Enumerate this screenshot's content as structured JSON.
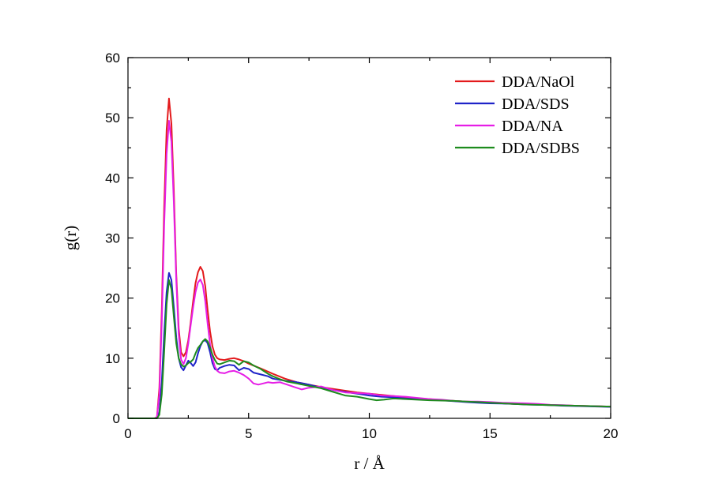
{
  "chart_data": {
    "type": "line",
    "title": "",
    "xlabel": "r / Å",
    "ylabel": "g(r)",
    "xlim": [
      0,
      20
    ],
    "ylim": [
      0,
      60
    ],
    "xticks": [
      0,
      5,
      10,
      15,
      20
    ],
    "yticks": [
      0,
      10,
      20,
      30,
      40,
      50,
      60
    ],
    "xtick_labels": [
      "0",
      "5",
      "10",
      "15",
      "20"
    ],
    "ytick_labels": [
      "0",
      "10",
      "20",
      "30",
      "40",
      "50",
      "60"
    ],
    "grid": false,
    "legend_position": "top-right",
    "series": [
      {
        "name": "DDA/NaOl",
        "color": "#e31a1c",
        "points": [
          [
            0,
            0
          ],
          [
            1.1,
            0
          ],
          [
            1.2,
            0.2
          ],
          [
            1.3,
            5
          ],
          [
            1.4,
            18
          ],
          [
            1.5,
            35
          ],
          [
            1.6,
            48
          ],
          [
            1.7,
            53.2
          ],
          [
            1.8,
            49
          ],
          [
            1.9,
            38
          ],
          [
            2.0,
            24
          ],
          [
            2.1,
            15
          ],
          [
            2.2,
            11
          ],
          [
            2.3,
            10.3
          ],
          [
            2.4,
            11
          ],
          [
            2.5,
            13
          ],
          [
            2.6,
            16
          ],
          [
            2.7,
            19.5
          ],
          [
            2.8,
            22.5
          ],
          [
            2.9,
            24.3
          ],
          [
            3.0,
            25.2
          ],
          [
            3.1,
            24.5
          ],
          [
            3.2,
            22
          ],
          [
            3.3,
            18
          ],
          [
            3.4,
            14.5
          ],
          [
            3.5,
            12
          ],
          [
            3.6,
            10.6
          ],
          [
            3.7,
            10
          ],
          [
            3.8,
            9.8
          ],
          [
            4.0,
            9.7
          ],
          [
            4.2,
            9.9
          ],
          [
            4.4,
            10
          ],
          [
            4.6,
            9.8
          ],
          [
            4.8,
            9.5
          ],
          [
            5.0,
            9.1
          ],
          [
            5.5,
            8.3
          ],
          [
            6.0,
            7.4
          ],
          [
            6.5,
            6.6
          ],
          [
            7.0,
            6.0
          ],
          [
            7.5,
            5.6
          ],
          [
            8.0,
            5.2
          ],
          [
            8.5,
            4.9
          ],
          [
            9.0,
            4.6
          ],
          [
            9.5,
            4.3
          ],
          [
            10.0,
            4.1
          ],
          [
            10.5,
            3.9
          ],
          [
            11.0,
            3.7
          ],
          [
            11.5,
            3.5
          ],
          [
            12.0,
            3.3
          ],
          [
            12.5,
            3.2
          ],
          [
            13.0,
            3.0
          ],
          [
            13.5,
            2.9
          ],
          [
            14.0,
            2.8
          ],
          [
            14.5,
            2.7
          ],
          [
            15.0,
            2.6
          ],
          [
            15.5,
            2.5
          ],
          [
            16.0,
            2.4
          ],
          [
            16.5,
            2.35
          ],
          [
            17.0,
            2.3
          ],
          [
            17.5,
            2.2
          ],
          [
            18.0,
            2.15
          ],
          [
            18.5,
            2.1
          ],
          [
            19.0,
            2.05
          ],
          [
            19.5,
            2.0
          ],
          [
            20.0,
            1.95
          ]
        ]
      },
      {
        "name": "DDA/SDS",
        "color": "#1f23c8",
        "points": [
          [
            0,
            0
          ],
          [
            1.2,
            0
          ],
          [
            1.3,
            1
          ],
          [
            1.4,
            6
          ],
          [
            1.5,
            14
          ],
          [
            1.6,
            21
          ],
          [
            1.7,
            24.2
          ],
          [
            1.8,
            23
          ],
          [
            1.9,
            18.5
          ],
          [
            2.0,
            13.5
          ],
          [
            2.1,
            10
          ],
          [
            2.2,
            8.5
          ],
          [
            2.3,
            8.0
          ],
          [
            2.4,
            8.8
          ],
          [
            2.5,
            9.6
          ],
          [
            2.6,
            9.2
          ],
          [
            2.7,
            8.7
          ],
          [
            2.8,
            9.3
          ],
          [
            2.9,
            10.8
          ],
          [
            3.0,
            12
          ],
          [
            3.1,
            12.8
          ],
          [
            3.2,
            13
          ],
          [
            3.3,
            12.5
          ],
          [
            3.4,
            11
          ],
          [
            3.5,
            9.2
          ],
          [
            3.6,
            8.2
          ],
          [
            3.7,
            8.0
          ],
          [
            3.8,
            8.4
          ],
          [
            4.0,
            8.7
          ],
          [
            4.2,
            8.9
          ],
          [
            4.4,
            8.8
          ],
          [
            4.6,
            8.0
          ],
          [
            4.8,
            8.4
          ],
          [
            5.0,
            8.2
          ],
          [
            5.2,
            7.6
          ],
          [
            5.5,
            7.3
          ],
          [
            5.8,
            7.0
          ],
          [
            6.0,
            6.6
          ],
          [
            6.3,
            6.4
          ],
          [
            6.6,
            6.2
          ],
          [
            7.0,
            6.0
          ],
          [
            7.5,
            5.6
          ],
          [
            8.0,
            5.1
          ],
          [
            8.5,
            4.7
          ],
          [
            9.0,
            4.4
          ],
          [
            9.5,
            4.1
          ],
          [
            10.0,
            3.8
          ],
          [
            10.5,
            3.6
          ],
          [
            11.0,
            3.5
          ],
          [
            11.5,
            3.3
          ],
          [
            12.0,
            3.2
          ],
          [
            12.5,
            3.1
          ],
          [
            13.0,
            3.0
          ],
          [
            13.5,
            2.85
          ],
          [
            14.0,
            2.7
          ],
          [
            14.5,
            2.6
          ],
          [
            15.0,
            2.5
          ],
          [
            15.5,
            2.45
          ],
          [
            16.0,
            2.4
          ],
          [
            16.5,
            2.3
          ],
          [
            17.0,
            2.25
          ],
          [
            17.5,
            2.2
          ],
          [
            18.0,
            2.1
          ],
          [
            18.5,
            2.05
          ],
          [
            19.0,
            2.0
          ],
          [
            19.5,
            1.95
          ],
          [
            20.0,
            1.9
          ]
        ]
      },
      {
        "name": "DDA/NA",
        "color": "#e61ee6",
        "points": [
          [
            0,
            0
          ],
          [
            1.1,
            0
          ],
          [
            1.2,
            0.2
          ],
          [
            1.3,
            4
          ],
          [
            1.4,
            16
          ],
          [
            1.5,
            32
          ],
          [
            1.6,
            44
          ],
          [
            1.7,
            49.5
          ],
          [
            1.8,
            46
          ],
          [
            1.9,
            36
          ],
          [
            2.0,
            23
          ],
          [
            2.1,
            14
          ],
          [
            2.2,
            9.8
          ],
          [
            2.3,
            9.0
          ],
          [
            2.4,
            10
          ],
          [
            2.5,
            12.5
          ],
          [
            2.6,
            15.5
          ],
          [
            2.7,
            18.5
          ],
          [
            2.8,
            21
          ],
          [
            2.9,
            22.6
          ],
          [
            3.0,
            23.1
          ],
          [
            3.1,
            22.2
          ],
          [
            3.2,
            19.5
          ],
          [
            3.3,
            15.8
          ],
          [
            3.4,
            12.3
          ],
          [
            3.5,
            10
          ],
          [
            3.6,
            8.6
          ],
          [
            3.7,
            7.9
          ],
          [
            3.8,
            7.6
          ],
          [
            4.0,
            7.5
          ],
          [
            4.2,
            7.8
          ],
          [
            4.4,
            7.9
          ],
          [
            4.6,
            7.6
          ],
          [
            4.8,
            7.2
          ],
          [
            5.0,
            6.6
          ],
          [
            5.2,
            5.8
          ],
          [
            5.4,
            5.6
          ],
          [
            5.6,
            5.8
          ],
          [
            5.8,
            6.0
          ],
          [
            6.0,
            5.9
          ],
          [
            6.3,
            6.0
          ],
          [
            6.6,
            5.6
          ],
          [
            6.9,
            5.2
          ],
          [
            7.2,
            4.8
          ],
          [
            7.5,
            5.1
          ],
          [
            8.0,
            5.3
          ],
          [
            8.5,
            4.7
          ],
          [
            9.0,
            4.3
          ],
          [
            9.5,
            4.2
          ],
          [
            10.0,
            4.1
          ],
          [
            10.5,
            3.8
          ],
          [
            11.0,
            3.7
          ],
          [
            11.5,
            3.6
          ],
          [
            12.0,
            3.4
          ],
          [
            12.5,
            3.2
          ],
          [
            13.0,
            3.1
          ],
          [
            13.5,
            2.9
          ],
          [
            14.0,
            2.8
          ],
          [
            14.5,
            2.8
          ],
          [
            15.0,
            2.7
          ],
          [
            15.5,
            2.6
          ],
          [
            16.0,
            2.55
          ],
          [
            16.5,
            2.5
          ],
          [
            17.0,
            2.4
          ],
          [
            17.5,
            2.25
          ],
          [
            18.0,
            2.2
          ],
          [
            18.5,
            2.1
          ],
          [
            19.0,
            2.05
          ],
          [
            19.5,
            2.0
          ],
          [
            20.0,
            1.95
          ]
        ]
      },
      {
        "name": "DDA/SDBS",
        "color": "#1e8c1e",
        "points": [
          [
            0,
            0
          ],
          [
            1.2,
            0
          ],
          [
            1.3,
            0.6
          ],
          [
            1.4,
            4
          ],
          [
            1.5,
            11
          ],
          [
            1.6,
            19
          ],
          [
            1.7,
            23
          ],
          [
            1.8,
            21.5
          ],
          [
            1.9,
            17
          ],
          [
            2.0,
            12.5
          ],
          [
            2.1,
            10
          ],
          [
            2.2,
            9.0
          ],
          [
            2.3,
            8.6
          ],
          [
            2.4,
            8.8
          ],
          [
            2.5,
            9.2
          ],
          [
            2.6,
            9.4
          ],
          [
            2.7,
            9.8
          ],
          [
            2.8,
            10.8
          ],
          [
            2.9,
            11.7
          ],
          [
            3.0,
            12.2
          ],
          [
            3.1,
            12.8
          ],
          [
            3.2,
            13.2
          ],
          [
            3.3,
            12.8
          ],
          [
            3.4,
            11.8
          ],
          [
            3.5,
            10.6
          ],
          [
            3.6,
            9.7
          ],
          [
            3.7,
            9.1
          ],
          [
            3.8,
            9.0
          ],
          [
            4.0,
            9.3
          ],
          [
            4.2,
            9.6
          ],
          [
            4.4,
            9.5
          ],
          [
            4.6,
            8.9
          ],
          [
            4.8,
            9.5
          ],
          [
            5.0,
            9.3
          ],
          [
            5.2,
            8.8
          ],
          [
            5.5,
            8.2
          ],
          [
            5.8,
            7.4
          ],
          [
            6.0,
            7.0
          ],
          [
            6.3,
            6.5
          ],
          [
            6.6,
            6.1
          ],
          [
            7.0,
            5.8
          ],
          [
            7.5,
            5.4
          ],
          [
            8.0,
            5.0
          ],
          [
            8.5,
            4.4
          ],
          [
            9.0,
            3.8
          ],
          [
            9.5,
            3.6
          ],
          [
            10.0,
            3.2
          ],
          [
            10.3,
            3.0
          ],
          [
            10.6,
            3.1
          ],
          [
            11.0,
            3.3
          ],
          [
            11.5,
            3.2
          ],
          [
            12.0,
            3.1
          ],
          [
            12.5,
            3.0
          ],
          [
            13.0,
            2.95
          ],
          [
            13.5,
            2.9
          ],
          [
            14.0,
            2.8
          ],
          [
            14.5,
            2.7
          ],
          [
            15.0,
            2.6
          ],
          [
            15.5,
            2.5
          ],
          [
            16.0,
            2.4
          ],
          [
            16.5,
            2.3
          ],
          [
            17.0,
            2.25
          ],
          [
            17.5,
            2.2
          ],
          [
            18.0,
            2.15
          ],
          [
            18.5,
            2.1
          ],
          [
            19.0,
            2.05
          ],
          [
            19.5,
            2.0
          ],
          [
            20.0,
            1.95
          ]
        ]
      }
    ]
  }
}
